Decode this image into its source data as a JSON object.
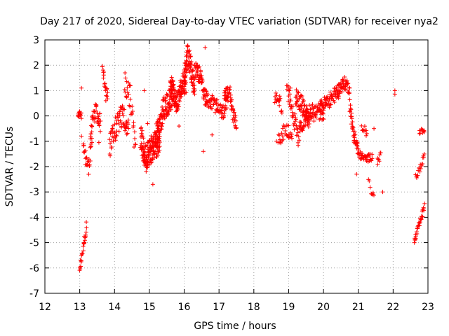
{
  "chart_data": {
    "type": "scatter",
    "title": "Day 217 of 2020, Sidereal Day-to-day VTEC variation (SDTVAR) for receiver nya2",
    "xlabel": "GPS time / hours",
    "ylabel": "SDTVAR / TECUs",
    "xlim": [
      12,
      23
    ],
    "ylim": [
      -7,
      3
    ],
    "xticks": [
      12,
      13,
      14,
      15,
      16,
      17,
      18,
      19,
      20,
      21,
      22,
      23
    ],
    "yticks": [
      -7,
      -6,
      -5,
      -4,
      -3,
      -2,
      -1,
      0,
      1,
      2,
      3
    ],
    "xtick_labels": [
      "12",
      "13",
      "14",
      "15",
      "16",
      "17",
      "18",
      "19",
      "20",
      "21",
      "22",
      "23"
    ],
    "ytick_labels": [
      "-7",
      "-6",
      "-5",
      "-4",
      "-3",
      "-2",
      "-1",
      "0",
      "1",
      "2",
      "3"
    ],
    "grid": true,
    "marker": "+",
    "color": "#ff0000",
    "series": [
      {
        "name": "SDTVAR",
        "segments": [
          {
            "x0": 12.95,
            "x1": 13.05,
            "ctrl": [
              [
                12.95,
                0.1
              ],
              [
                13.05,
                0.0
              ]
            ],
            "spread": 0.15,
            "n": 14
          },
          {
            "x0": 13.0,
            "x1": 13.2,
            "ctrl": [
              [
                13.0,
                -6.0
              ],
              [
                13.1,
                -5.2
              ],
              [
                13.2,
                -4.3
              ]
            ],
            "spread": 0.25,
            "n": 24
          },
          {
            "x0": 13.1,
            "x1": 13.35,
            "ctrl": [
              [
                13.1,
                -1.3
              ],
              [
                13.25,
                -2.1
              ],
              [
                13.35,
                -1.0
              ]
            ],
            "spread": 0.3,
            "n": 28
          },
          {
            "x0": 13.3,
            "x1": 13.6,
            "ctrl": [
              [
                13.3,
                -0.7
              ],
              [
                13.45,
                0.2
              ],
              [
                13.6,
                -0.3
              ]
            ],
            "spread": 0.35,
            "n": 40
          },
          {
            "x0": 13.65,
            "x1": 13.8,
            "ctrl": [
              [
                13.65,
                1.9
              ],
              [
                13.72,
                1.2
              ],
              [
                13.8,
                0.8
              ]
            ],
            "spread": 0.25,
            "n": 20
          },
          {
            "x0": 13.85,
            "x1": 14.4,
            "ctrl": [
              [
                13.85,
                -1.3
              ],
              [
                14.0,
                -0.6
              ],
              [
                14.2,
                0.0
              ],
              [
                14.4,
                -0.5
              ]
            ],
            "spread": 0.5,
            "n": 70
          },
          {
            "x0": 14.3,
            "x1": 14.6,
            "ctrl": [
              [
                14.3,
                1.4
              ],
              [
                14.45,
                0.8
              ],
              [
                14.6,
                -1.4
              ]
            ],
            "spread": 0.5,
            "n": 30
          },
          {
            "x0": 14.75,
            "x1": 15.3,
            "ctrl": [
              [
                14.75,
                -0.8
              ],
              [
                14.9,
                -1.7
              ],
              [
                15.1,
                -1.2
              ],
              [
                15.3,
                -1.0
              ]
            ],
            "spread": 0.55,
            "n": 160
          },
          {
            "x0": 15.2,
            "x1": 15.7,
            "ctrl": [
              [
                15.2,
                -0.8
              ],
              [
                15.4,
                0.2
              ],
              [
                15.55,
                0.6
              ],
              [
                15.7,
                0.9
              ]
            ],
            "spread": 0.5,
            "n": 110
          },
          {
            "x0": 15.6,
            "x1": 16.05,
            "ctrl": [
              [
                15.6,
                1.3
              ],
              [
                15.8,
                0.4
              ],
              [
                15.95,
                1.4
              ],
              [
                16.05,
                1.2
              ]
            ],
            "spread": 0.45,
            "n": 110
          },
          {
            "x0": 16.0,
            "x1": 16.3,
            "ctrl": [
              [
                16.0,
                1.5
              ],
              [
                16.1,
                2.4
              ],
              [
                16.2,
                1.8
              ],
              [
                16.3,
                1.0
              ]
            ],
            "spread": 0.5,
            "n": 70
          },
          {
            "x0": 16.3,
            "x1": 16.65,
            "ctrl": [
              [
                16.3,
                1.8
              ],
              [
                16.45,
                1.6
              ],
              [
                16.55,
                0.9
              ],
              [
                16.65,
                0.6
              ]
            ],
            "spread": 0.35,
            "n": 60
          },
          {
            "x0": 16.65,
            "x1": 17.25,
            "ctrl": [
              [
                16.65,
                0.7
              ],
              [
                16.9,
                0.4
              ],
              [
                17.1,
                0.1
              ],
              [
                17.25,
                0.5
              ]
            ],
            "spread": 0.3,
            "n": 70
          },
          {
            "x0": 17.15,
            "x1": 17.5,
            "ctrl": [
              [
                17.15,
                0.6
              ],
              [
                17.3,
                1.2
              ],
              [
                17.4,
                0.0
              ],
              [
                17.5,
                -0.3
              ]
            ],
            "spread": 0.3,
            "n": 50
          },
          {
            "x0": 18.6,
            "x1": 18.8,
            "ctrl": [
              [
                18.6,
                0.6
              ],
              [
                18.7,
                0.8
              ],
              [
                18.8,
                0.2
              ]
            ],
            "spread": 0.25,
            "n": 18
          },
          {
            "x0": 18.7,
            "x1": 19.1,
            "ctrl": [
              [
                18.7,
                -1.0
              ],
              [
                18.9,
                -0.5
              ],
              [
                19.1,
                -0.7
              ]
            ],
            "spread": 0.3,
            "n": 30
          },
          {
            "x0": 18.95,
            "x1": 19.3,
            "ctrl": [
              [
                18.95,
                1.0
              ],
              [
                19.1,
                0.2
              ],
              [
                19.3,
                -1.0
              ]
            ],
            "spread": 0.4,
            "n": 40
          },
          {
            "x0": 19.2,
            "x1": 19.6,
            "ctrl": [
              [
                19.2,
                0.8
              ],
              [
                19.4,
                0.4
              ],
              [
                19.6,
                -0.2
              ]
            ],
            "spread": 0.35,
            "n": 60
          },
          {
            "x0": 19.3,
            "x1": 20.0,
            "ctrl": [
              [
                19.3,
                -0.4
              ],
              [
                19.6,
                0.1
              ],
              [
                20.0,
                0.2
              ]
            ],
            "spread": 0.35,
            "n": 90
          },
          {
            "x0": 19.9,
            "x1": 20.45,
            "ctrl": [
              [
                19.9,
                0.3
              ],
              [
                20.15,
                0.6
              ],
              [
                20.45,
                1.0
              ]
            ],
            "spread": 0.3,
            "n": 70
          },
          {
            "x0": 20.4,
            "x1": 20.75,
            "ctrl": [
              [
                20.4,
                1.0
              ],
              [
                20.6,
                1.3
              ],
              [
                20.75,
                1.1
              ]
            ],
            "spread": 0.25,
            "n": 50
          },
          {
            "x0": 20.75,
            "x1": 21.0,
            "ctrl": [
              [
                20.75,
                0.5
              ],
              [
                20.85,
                -0.6
              ],
              [
                21.0,
                -1.4
              ]
            ],
            "spread": 0.3,
            "n": 40
          },
          {
            "x0": 21.0,
            "x1": 21.4,
            "ctrl": [
              [
                21.0,
                -1.5
              ],
              [
                21.2,
                -1.7
              ],
              [
                21.4,
                -1.6
              ]
            ],
            "spread": 0.15,
            "n": 40
          },
          {
            "x0": 21.1,
            "x1": 21.25,
            "ctrl": [
              [
                21.1,
                -0.4
              ],
              [
                21.2,
                -0.6
              ]
            ],
            "spread": 0.2,
            "n": 10
          },
          {
            "x0": 21.3,
            "x1": 21.45,
            "ctrl": [
              [
                21.3,
                -2.7
              ],
              [
                21.45,
                -3.2
              ]
            ],
            "spread": 0.2,
            "n": 8
          },
          {
            "x0": 21.55,
            "x1": 21.65,
            "ctrl": [
              [
                21.55,
                -1.8
              ],
              [
                21.65,
                -1.5
              ]
            ],
            "spread": 0.15,
            "n": 8
          },
          {
            "x0": 22.6,
            "x1": 22.9,
            "ctrl": [
              [
                22.6,
                -5.0
              ],
              [
                22.75,
                -4.3
              ],
              [
                22.9,
                -3.6
              ]
            ],
            "spread": 0.15,
            "n": 30
          },
          {
            "x0": 22.65,
            "x1": 22.9,
            "ctrl": [
              [
                22.65,
                -2.4
              ],
              [
                22.8,
                -2.0
              ],
              [
                22.9,
                -1.6
              ]
            ],
            "spread": 0.15,
            "n": 18
          },
          {
            "x0": 22.75,
            "x1": 22.9,
            "ctrl": [
              [
                22.75,
                -0.6
              ],
              [
                22.9,
                -0.6
              ]
            ],
            "spread": 0.1,
            "n": 10
          }
        ],
        "isolated_points": [
          [
            13.05,
            1.1
          ],
          [
            13.05,
            -0.8
          ],
          [
            13.55,
            -1.05
          ],
          [
            13.75,
            0.6
          ],
          [
            14.3,
            1.7
          ],
          [
            14.85,
            1.0
          ],
          [
            14.95,
            -0.3
          ],
          [
            15.1,
            -2.7
          ],
          [
            15.85,
            -0.4
          ],
          [
            16.55,
            -1.4
          ],
          [
            16.8,
            -0.75
          ],
          [
            16.6,
            2.7
          ],
          [
            18.65,
            -1.0
          ],
          [
            19.05,
            1.1
          ],
          [
            20.95,
            -2.3
          ],
          [
            21.45,
            -0.5
          ],
          [
            21.7,
            -3.0
          ],
          [
            22.05,
            1.0
          ],
          [
            22.05,
            0.85
          ],
          [
            22.85,
            -0.55
          ]
        ]
      }
    ]
  }
}
